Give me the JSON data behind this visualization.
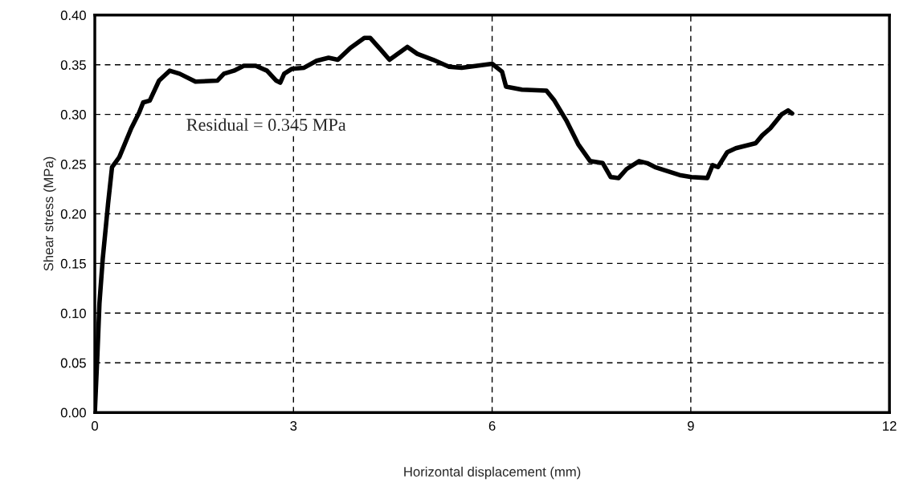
{
  "chart_data": {
    "type": "line",
    "xlabel": "Horizontal displacement (mm)",
    "ylabel": "Shear stress (MPa)",
    "annotations": [
      "Residual = 0.345 MPa"
    ],
    "xlim": [
      0,
      12
    ],
    "xticks": [
      0,
      3,
      6,
      9,
      12
    ],
    "ylim": [
      0,
      0.4
    ],
    "yticks": [
      {
        "value": 0,
        "label": "0.00"
      },
      {
        "value": 0.05,
        "label": "0.05"
      },
      {
        "value": 0.1,
        "label": "0.10"
      },
      {
        "value": 0.15,
        "label": "0.15"
      },
      {
        "value": 0.2,
        "label": "0.20"
      },
      {
        "value": 0.25,
        "label": "0.25"
      },
      {
        "value": 0.3,
        "label": "0.30"
      },
      {
        "value": 0.35,
        "label": "0.35"
      },
      {
        "value": 0.4,
        "label": "0.40"
      }
    ],
    "grid": true,
    "line_style": "solid",
    "marker": "none",
    "series": [
      {
        "color": "#000000",
        "x": [
          0,
          0.04,
          0.07,
          0.12,
          0.2,
          0.26,
          0.37,
          0.55,
          0.67,
          0.73,
          0.83,
          0.97,
          1.13,
          1.28,
          1.52,
          1.85,
          1.95,
          2.1,
          2.25,
          2.43,
          2.6,
          2.74,
          2.8,
          2.86,
          2.98,
          3.16,
          3.35,
          3.53,
          3.67,
          3.86,
          4.07,
          4.16,
          4.32,
          4.45,
          4.72,
          4.87,
          5.11,
          5.35,
          5.54,
          6.0,
          6.15,
          6.21,
          6.45,
          6.82,
          6.94,
          7.12,
          7.3,
          7.48,
          7.67,
          7.79,
          7.91,
          8.03,
          8.22,
          8.34,
          8.46,
          8.64,
          8.83,
          9.01,
          9.25,
          9.33,
          9.41,
          9.55,
          9.68,
          9.98,
          10.08,
          10.2,
          10.37,
          10.47,
          10.53
        ],
        "values": [
          0,
          0.06,
          0.11,
          0.155,
          0.21,
          0.247,
          0.257,
          0.286,
          0.302,
          0.312,
          0.314,
          0.334,
          0.344,
          0.341,
          0.333,
          0.334,
          0.341,
          0.344,
          0.349,
          0.349,
          0.344,
          0.334,
          0.332,
          0.341,
          0.346,
          0.347,
          0.354,
          0.357,
          0.355,
          0.367,
          0.377,
          0.377,
          0.365,
          0.355,
          0.368,
          0.361,
          0.355,
          0.348,
          0.347,
          0.351,
          0.343,
          0.328,
          0.325,
          0.324,
          0.314,
          0.294,
          0.27,
          0.253,
          0.251,
          0.237,
          0.236,
          0.245,
          0.253,
          0.251,
          0.247,
          0.243,
          0.239,
          0.237,
          0.236,
          0.249,
          0.247,
          0.262,
          0.266,
          0.271,
          0.279,
          0.286,
          0.3,
          0.304,
          0.301
        ]
      }
    ]
  }
}
